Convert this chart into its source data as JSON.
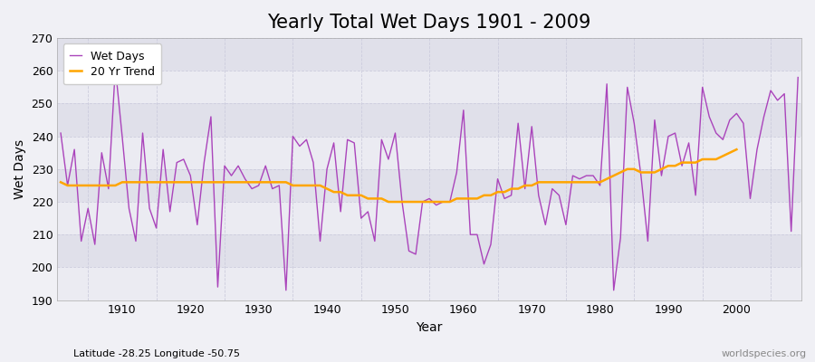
{
  "title": "Yearly Total Wet Days 1901 - 2009",
  "xlabel": "Year",
  "ylabel": "Wet Days",
  "subtitle": "Latitude -28.25 Longitude -50.75",
  "watermark": "worldspecies.org",
  "years": [
    1901,
    1902,
    1903,
    1904,
    1905,
    1906,
    1907,
    1908,
    1909,
    1910,
    1911,
    1912,
    1913,
    1914,
    1915,
    1916,
    1917,
    1918,
    1919,
    1920,
    1921,
    1922,
    1923,
    1924,
    1925,
    1926,
    1927,
    1928,
    1929,
    1930,
    1931,
    1932,
    1933,
    1934,
    1935,
    1936,
    1937,
    1938,
    1939,
    1940,
    1941,
    1942,
    1943,
    1944,
    1945,
    1946,
    1947,
    1948,
    1949,
    1950,
    1951,
    1952,
    1953,
    1954,
    1955,
    1956,
    1957,
    1958,
    1959,
    1960,
    1961,
    1962,
    1963,
    1964,
    1965,
    1966,
    1967,
    1968,
    1969,
    1970,
    1971,
    1972,
    1973,
    1974,
    1975,
    1976,
    1977,
    1978,
    1979,
    1980,
    1981,
    1982,
    1983,
    1984,
    1985,
    1986,
    1987,
    1988,
    1989,
    1990,
    1991,
    1992,
    1993,
    1994,
    1995,
    1996,
    1997,
    1998,
    1999,
    2000,
    2001,
    2002,
    2003,
    2004,
    2005,
    2006,
    2007,
    2008,
    2009
  ],
  "wet_days": [
    241,
    225,
    236,
    208,
    218,
    207,
    235,
    224,
    261,
    240,
    218,
    208,
    241,
    218,
    212,
    236,
    217,
    232,
    233,
    228,
    213,
    232,
    246,
    194,
    231,
    228,
    231,
    227,
    224,
    225,
    231,
    224,
    225,
    193,
    240,
    237,
    239,
    232,
    208,
    230,
    238,
    217,
    239,
    238,
    215,
    217,
    208,
    239,
    233,
    241,
    220,
    205,
    204,
    220,
    221,
    219,
    220,
    220,
    229,
    248,
    210,
    210,
    201,
    207,
    227,
    221,
    222,
    244,
    224,
    243,
    222,
    213,
    224,
    222,
    213,
    228,
    227,
    228,
    228,
    225,
    256,
    193,
    209,
    255,
    244,
    228,
    208,
    245,
    228,
    240,
    241,
    231,
    238,
    222,
    255,
    246,
    241,
    239,
    245,
    247,
    244,
    221,
    236,
    246,
    254,
    251,
    253,
    211,
    258
  ],
  "trend": [
    226,
    225,
    225,
    225,
    225,
    225,
    225,
    225,
    225,
    226,
    226,
    226,
    226,
    226,
    226,
    226,
    226,
    226,
    226,
    226,
    226,
    226,
    226,
    226,
    226,
    226,
    226,
    226,
    226,
    226,
    226,
    226,
    226,
    226,
    225,
    225,
    225,
    225,
    225,
    224,
    223,
    223,
    222,
    222,
    222,
    221,
    221,
    221,
    220,
    220,
    220,
    220,
    220,
    220,
    220,
    220,
    220,
    220,
    221,
    221,
    221,
    221,
    222,
    222,
    223,
    223,
    224,
    224,
    225,
    225,
    226,
    226,
    226,
    226,
    226,
    226,
    226,
    226,
    226,
    226,
    227,
    228,
    229,
    230,
    230,
    229,
    229,
    229,
    230,
    231,
    231,
    232,
    232,
    232,
    233,
    233,
    233,
    234,
    235,
    236
  ],
  "line_color": "#AA44BB",
  "trend_color": "#FFA500",
  "bg_color": "#F0F0F5",
  "plot_bg_color": "#F0F0F5",
  "band_color_light": "#EBEBF2",
  "band_color_dark": "#E0E0EA",
  "grid_color": "#CCCCDD",
  "ylim": [
    190,
    270
  ],
  "yticks": [
    190,
    200,
    210,
    220,
    230,
    240,
    250,
    260,
    270
  ],
  "title_fontsize": 15,
  "label_fontsize": 10,
  "tick_fontsize": 9
}
